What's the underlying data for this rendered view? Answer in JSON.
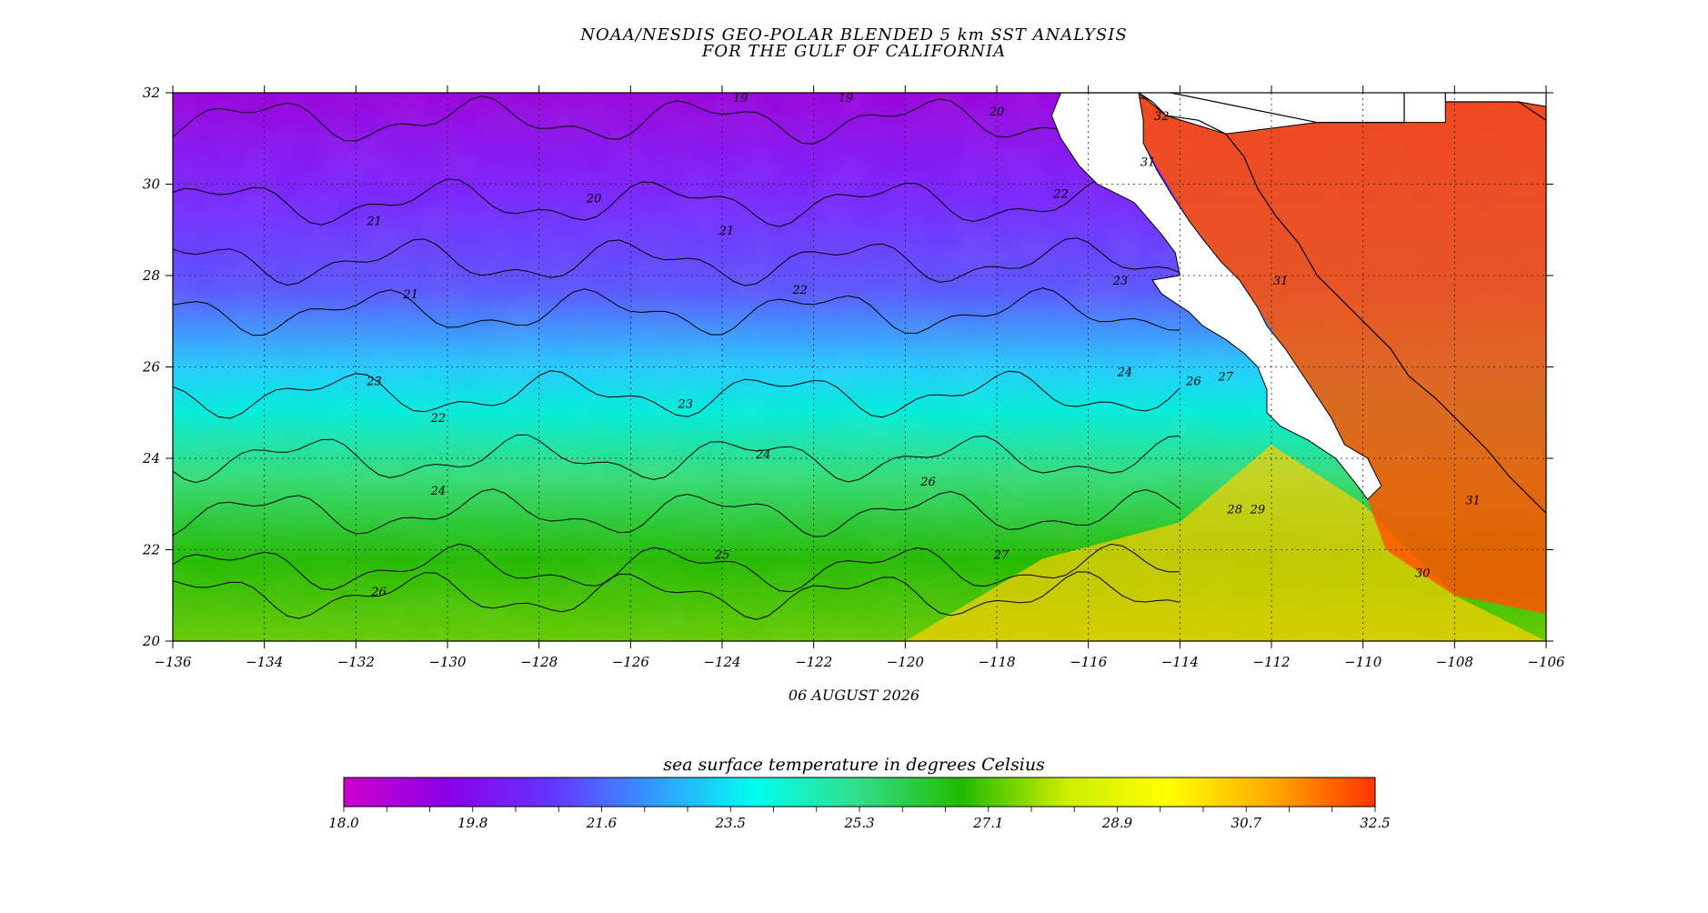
{
  "title_line1": "NOAA/NESDIS GEO-POLAR BLENDED 5 km SST ANALYSIS",
  "title_line2": "FOR THE GULF OF CALIFORNIA",
  "date": "06 AUGUST 2026",
  "colorbar": {
    "title": "sea surface temperature in degrees Celsius",
    "min": 18.0,
    "max": 32.5,
    "tick_labels": [
      "18.0",
      "19.8",
      "21.6",
      "23.5",
      "25.3",
      "27.1",
      "28.9",
      "30.7",
      "32.5"
    ],
    "stops": [
      "#cc00cc",
      "#8a00e6",
      "#6633ff",
      "#3399ff",
      "#00ffee",
      "#33dd88",
      "#22bb00",
      "#ccee00",
      "#ffff00",
      "#ffaa00",
      "#ff3300"
    ]
  },
  "axes": {
    "lon_min": -136,
    "lon_max": -106,
    "lat_min": 20,
    "lat_max": 32,
    "lon_ticks": [
      -136,
      -134,
      -132,
      -130,
      -128,
      -126,
      -124,
      -122,
      -120,
      -118,
      -116,
      -114,
      -112,
      -110,
      -108,
      -106
    ],
    "lat_ticks": [
      20,
      22,
      24,
      26,
      28,
      30,
      32
    ],
    "lon_labels": [
      "−136",
      "−134",
      "−132",
      "−130",
      "−128",
      "−126",
      "−124",
      "−122",
      "−120",
      "−118",
      "−116",
      "−114",
      "−112",
      "−110",
      "−108",
      "−106"
    ],
    "lat_labels": [
      "20",
      "22",
      "24",
      "26",
      "28",
      "30",
      "32"
    ]
  },
  "sst_field": {
    "isotherms": [
      {
        "lat": 31.4,
        "value": 19
      },
      {
        "lat": 29.6,
        "value": 20
      },
      {
        "lat": 28.3,
        "value": 21
      },
      {
        "lat": 27.2,
        "value": 22
      },
      {
        "lat": 25.4,
        "value": 23
      },
      {
        "lat": 24.0,
        "value": 24
      },
      {
        "lat": 22.8,
        "value": 25
      },
      {
        "lat": 21.6,
        "value": 26
      },
      {
        "lat": 21.0,
        "value": 27
      }
    ],
    "contour_labels": [
      {
        "lon": -123.6,
        "lat": 31.8,
        "text": "19"
      },
      {
        "lon": -121.3,
        "lat": 31.8,
        "text": "19"
      },
      {
        "lon": -126.8,
        "lat": 29.6,
        "text": "20"
      },
      {
        "lon": -118.0,
        "lat": 31.5,
        "text": "20"
      },
      {
        "lon": -131.6,
        "lat": 29.1,
        "text": "21"
      },
      {
        "lon": -123.9,
        "lat": 28.9,
        "text": "21"
      },
      {
        "lon": -130.8,
        "lat": 27.5,
        "text": "21"
      },
      {
        "lon": -116.6,
        "lat": 29.7,
        "text": "22"
      },
      {
        "lon": -122.3,
        "lat": 27.6,
        "text": "22"
      },
      {
        "lon": -130.2,
        "lat": 24.8,
        "text": "22"
      },
      {
        "lon": -131.6,
        "lat": 25.6,
        "text": "23"
      },
      {
        "lon": -124.8,
        "lat": 25.1,
        "text": "23"
      },
      {
        "lon": -115.3,
        "lat": 27.8,
        "text": "23"
      },
      {
        "lon": -123.1,
        "lat": 24.0,
        "text": "24"
      },
      {
        "lon": -115.2,
        "lat": 25.8,
        "text": "24"
      },
      {
        "lon": -130.2,
        "lat": 23.2,
        "text": "24"
      },
      {
        "lon": -124.0,
        "lat": 21.8,
        "text": "25"
      },
      {
        "lon": -119.5,
        "lat": 23.4,
        "text": "26"
      },
      {
        "lon": -131.5,
        "lat": 21.0,
        "text": "26"
      },
      {
        "lon": -113.7,
        "lat": 25.6,
        "text": "26"
      },
      {
        "lon": -117.9,
        "lat": 21.8,
        "text": "27"
      },
      {
        "lon": -113.0,
        "lat": 25.7,
        "text": "27"
      },
      {
        "lon": -112.8,
        "lat": 22.8,
        "text": "28"
      },
      {
        "lon": -112.3,
        "lat": 22.8,
        "text": "29"
      },
      {
        "lon": -108.7,
        "lat": 21.4,
        "text": "30"
      },
      {
        "lon": -114.7,
        "lat": 30.4,
        "text": "31"
      },
      {
        "lon": -111.8,
        "lat": 27.8,
        "text": "31"
      },
      {
        "lon": -107.6,
        "lat": 23.0,
        "text": "31"
      },
      {
        "lon": -114.4,
        "lat": 31.4,
        "text": "32"
      }
    ]
  },
  "geography": {
    "baja_west_coast": [
      [
        -116.6,
        32
      ],
      [
        -116.8,
        31.5
      ],
      [
        -116.6,
        31.0
      ],
      [
        -116.2,
        30.4
      ],
      [
        -115.8,
        30.0
      ],
      [
        -115.0,
        29.6
      ],
      [
        -114.4,
        28.9
      ],
      [
        -114.1,
        28.5
      ],
      [
        -114.0,
        28.0
      ],
      [
        -114.6,
        27.9
      ],
      [
        -114.4,
        27.6
      ],
      [
        -113.8,
        27.2
      ],
      [
        -113.5,
        26.9
      ],
      [
        -113.0,
        26.6
      ],
      [
        -112.6,
        26.3
      ],
      [
        -112.3,
        26.0
      ],
      [
        -112.1,
        25.5
      ],
      [
        -112.1,
        25.0
      ],
      [
        -111.8,
        24.7
      ],
      [
        -111.2,
        24.4
      ],
      [
        -110.6,
        24.0
      ],
      [
        -110.2,
        23.5
      ],
      [
        -109.9,
        23.1
      ]
    ],
    "baja_east_coast": [
      [
        -109.9,
        23.1
      ],
      [
        -109.6,
        23.4
      ],
      [
        -109.9,
        24.0
      ],
      [
        -110.4,
        24.3
      ],
      [
        -110.7,
        24.9
      ],
      [
        -111.3,
        25.8
      ],
      [
        -111.7,
        26.4
      ],
      [
        -112.1,
        26.9
      ],
      [
        -112.3,
        27.3
      ],
      [
        -112.7,
        27.9
      ],
      [
        -113.1,
        28.3
      ],
      [
        -113.5,
        28.8
      ],
      [
        -113.8,
        29.2
      ],
      [
        -114.2,
        29.8
      ],
      [
        -114.5,
        30.3
      ],
      [
        -114.8,
        30.9
      ],
      [
        -114.8,
        31.4
      ],
      [
        -114.9,
        32
      ]
    ],
    "mainland_coast": [
      [
        -114.9,
        32
      ],
      [
        -114.6,
        31.8
      ],
      [
        -114.3,
        31.5
      ],
      [
        -113.6,
        31.4
      ],
      [
        -113.0,
        31.1
      ],
      [
        -112.6,
        30.6
      ],
      [
        -112.3,
        29.9
      ],
      [
        -111.9,
        29.3
      ],
      [
        -111.4,
        28.7
      ],
      [
        -111.0,
        28.0
      ],
      [
        -110.6,
        27.6
      ],
      [
        -110.0,
        27.0
      ],
      [
        -109.4,
        26.4
      ],
      [
        -109.0,
        25.8
      ],
      [
        -108.4,
        25.3
      ],
      [
        -107.8,
        24.7
      ],
      [
        -107.3,
        24.2
      ],
      [
        -106.8,
        23.6
      ],
      [
        -106.3,
        23.1
      ],
      [
        -106.0,
        22.8
      ]
    ],
    "us_border": [
      [
        -116.6,
        32
      ],
      [
        -114.9,
        32
      ]
    ],
    "state_lines": [
      [
        [
          -114.2,
          32.0
        ],
        [
          -111.0,
          31.35
        ],
        [
          -109.1,
          31.35
        ],
        [
          -109.1,
          32.0
        ]
      ],
      [
        [
          -108.2,
          32.0
        ],
        [
          -108.2,
          31.8
        ],
        [
          -106.6,
          31.8
        ],
        [
          -106.3,
          31.6
        ],
        [
          -106.0,
          31.4
        ]
      ]
    ]
  }
}
